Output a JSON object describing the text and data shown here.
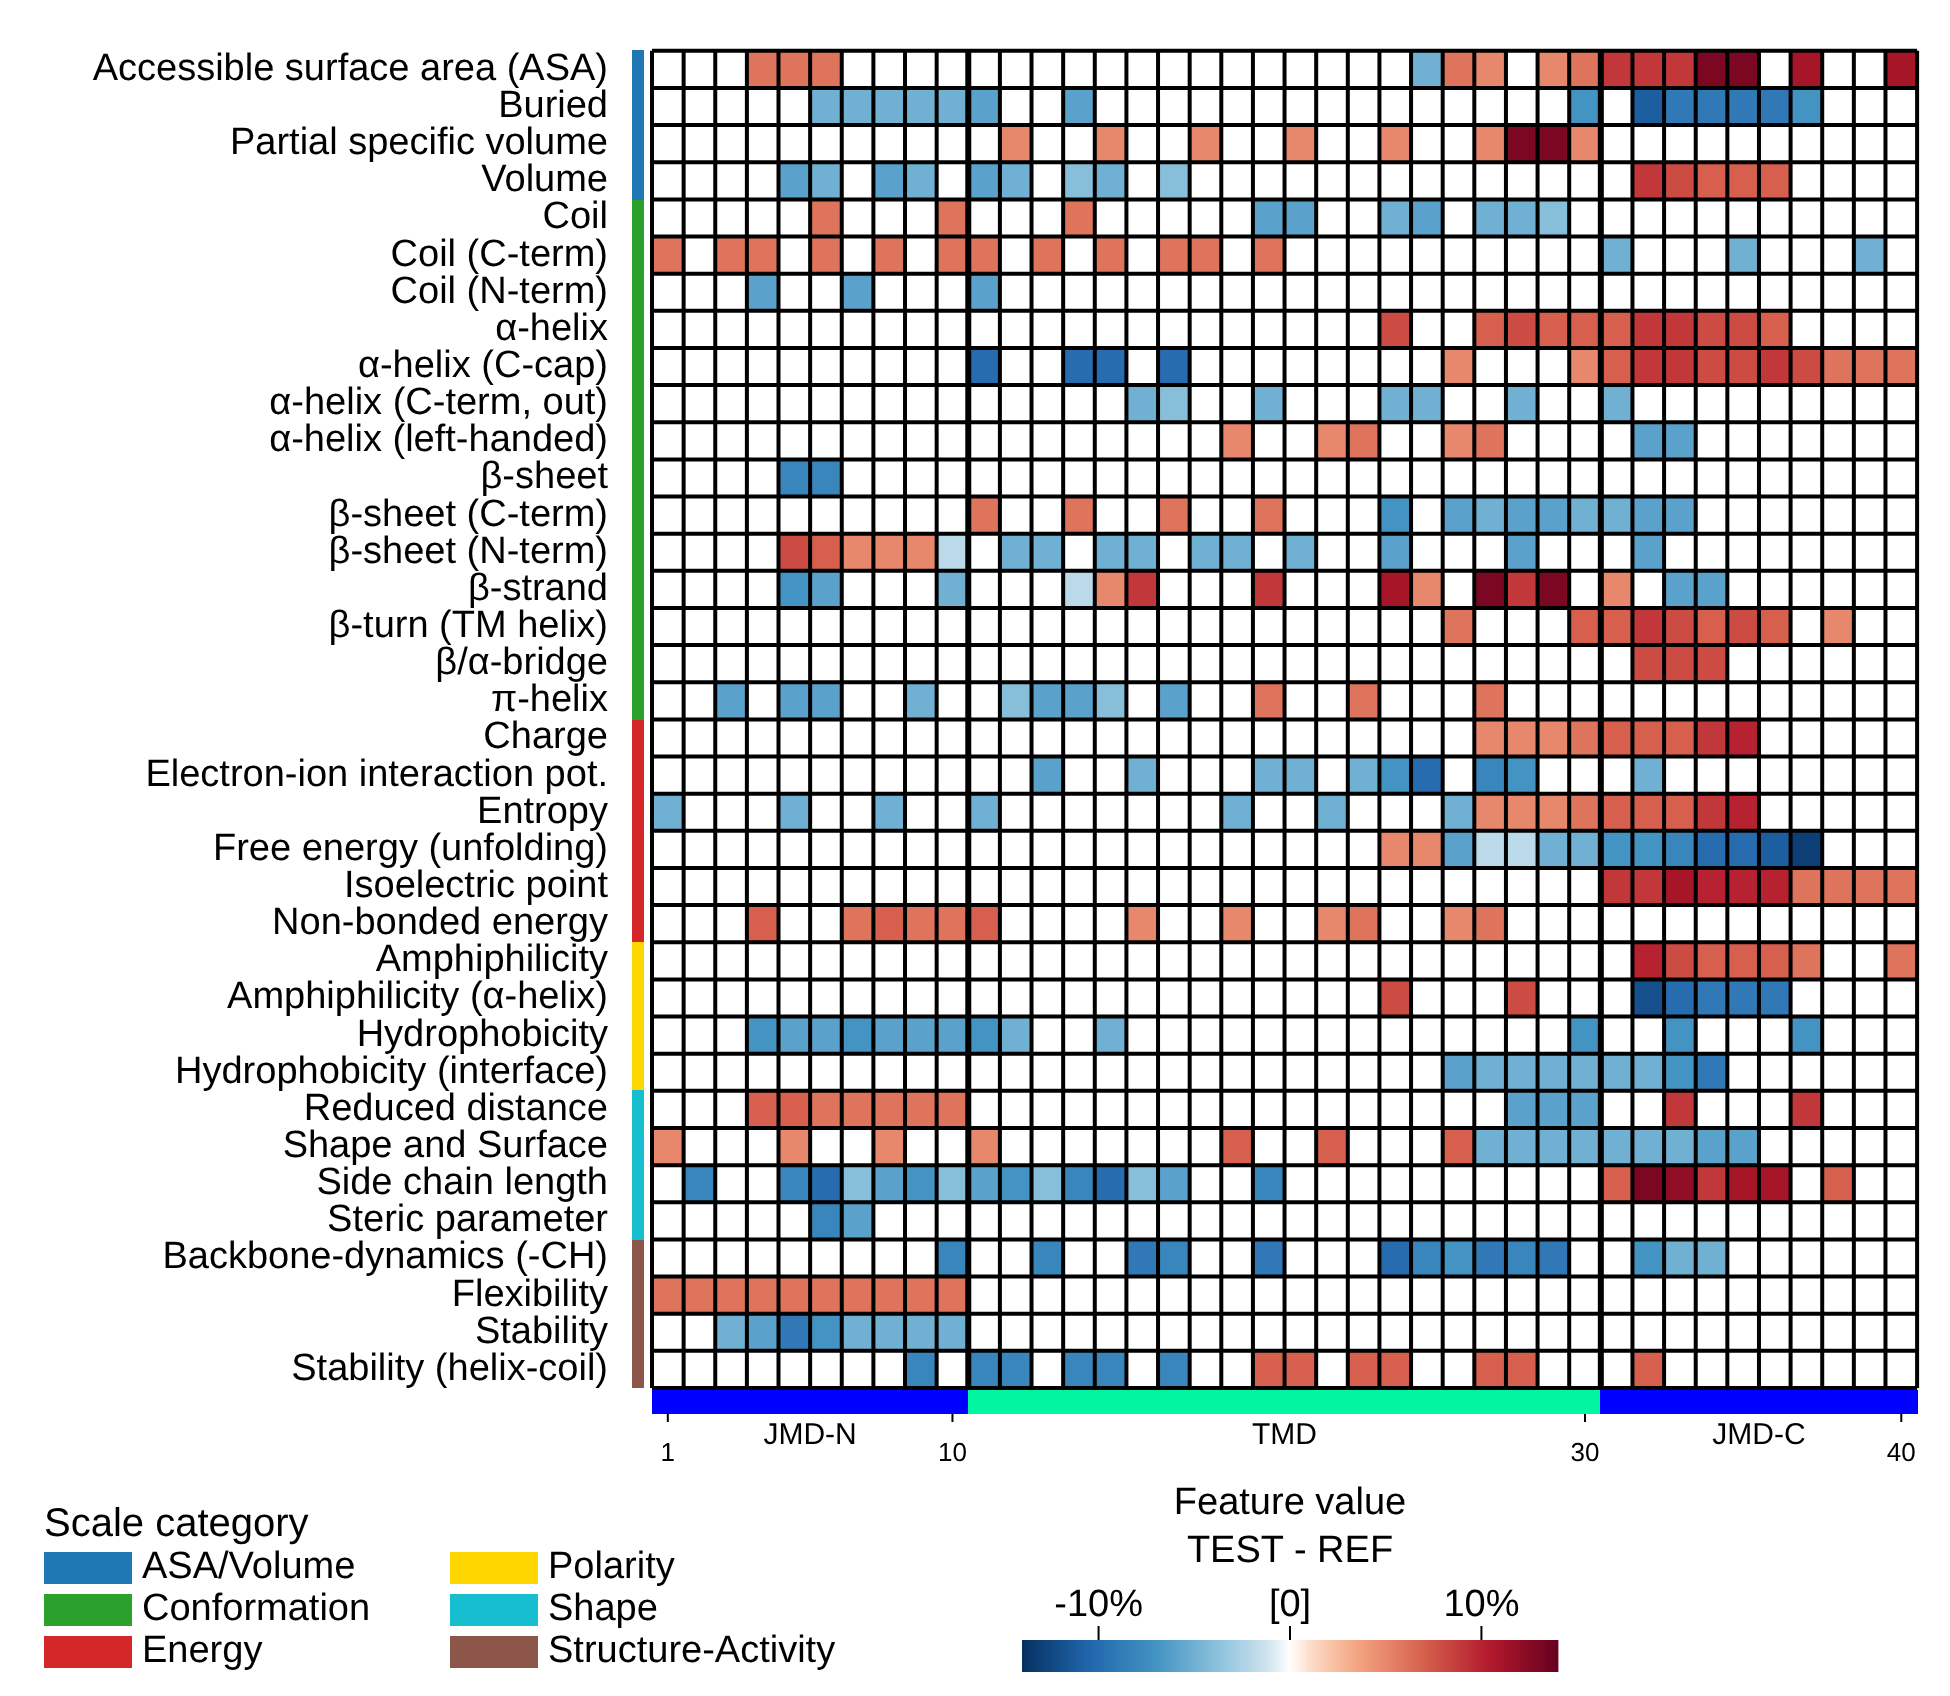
{
  "chart_data": {
    "type": "heatmap",
    "categories": [
      "1",
      null,
      null,
      null,
      null,
      null,
      null,
      null,
      null,
      "10",
      null,
      null,
      null,
      null,
      null,
      null,
      null,
      null,
      null,
      null,
      null,
      null,
      null,
      null,
      null,
      null,
      null,
      null,
      null,
      "30",
      null,
      null,
      null,
      null,
      null,
      null,
      null,
      null,
      null,
      "40"
    ],
    "y_categories": [
      "Accessible surface area (ASA)",
      "Buried",
      "Partial specific volume",
      "Volume",
      "Coil",
      "Coil (C-term)",
      "Coil (N-term)",
      "α-helix",
      "α-helix (C-cap)",
      "α-helix (C-term, out)",
      "α-helix (left-handed)",
      "β-sheet",
      "β-sheet (C-term)",
      "β-sheet (N-term)",
      "β-strand",
      "β-turn (TM helix)",
      "β/α-bridge",
      "π-helix",
      "Charge",
      "Electron-ion interaction pot.",
      "Entropy",
      "Free energy (unfolding)",
      "Isoelectric point",
      "Non-bonded energy",
      "Amphiphilicity",
      "Amphiphilicity (α-helix)",
      "Hydrophobicity",
      "Hydrophobicity (interface)",
      "Reduced distance",
      "Shape and Surface",
      "Side chain length",
      "Steric parameter",
      "Backbone-dynamics (-CH)",
      "Flexibility",
      "Stability",
      "Stability (helix-coil)"
    ],
    "cells": [
      [
        0,
        0,
        0,
        6,
        6,
        6,
        0,
        0,
        0,
        0,
        0,
        0,
        0,
        0,
        0,
        0,
        0,
        0,
        0,
        0,
        0,
        0,
        0,
        0,
        -5,
        6,
        5,
        0,
        5,
        6,
        9,
        9,
        9,
        13,
        13,
        0,
        11,
        0,
        0,
        11
      ],
      [
        0,
        0,
        0,
        0,
        0,
        -5,
        -5,
        -5,
        -5,
        -5,
        -6,
        0,
        0,
        -6,
        0,
        0,
        0,
        0,
        0,
        0,
        0,
        0,
        0,
        0,
        0,
        0,
        0,
        0,
        0,
        -7,
        0,
        -11,
        -9,
        -9,
        -9,
        -9,
        -7,
        0,
        0,
        0
      ],
      [
        0,
        0,
        0,
        0,
        0,
        0,
        0,
        0,
        0,
        0,
        0,
        5,
        0,
        0,
        5,
        0,
        0,
        5,
        0,
        0,
        5,
        0,
        0,
        5,
        0,
        0,
        5,
        13,
        13,
        5,
        0,
        0,
        0,
        0,
        0,
        0,
        0,
        0,
        0,
        0
      ],
      [
        0,
        0,
        0,
        0,
        -6,
        -5,
        0,
        -6,
        -5,
        0,
        -6,
        -5,
        0,
        -4,
        -5,
        0,
        -4,
        0,
        0,
        0,
        0,
        0,
        0,
        0,
        0,
        0,
        0,
        0,
        0,
        0,
        0,
        9,
        8,
        7,
        7,
        7,
        0,
        0,
        0,
        0
      ],
      [
        0,
        0,
        0,
        0,
        0,
        6,
        0,
        0,
        0,
        6,
        0,
        0,
        0,
        6,
        0,
        0,
        0,
        0,
        0,
        -6,
        -6,
        0,
        0,
        -5,
        -6,
        0,
        -5,
        -5,
        -4,
        0,
        0,
        0,
        0,
        0,
        0,
        0,
        0,
        0,
        0,
        0
      ],
      [
        6,
        0,
        6,
        6,
        0,
        6,
        0,
        6,
        0,
        6,
        6,
        0,
        6,
        0,
        6,
        0,
        6,
        6,
        0,
        6,
        0,
        0,
        0,
        0,
        0,
        0,
        0,
        0,
        0,
        0,
        -5,
        0,
        0,
        0,
        -5,
        0,
        0,
        0,
        -5,
        0
      ],
      [
        0,
        0,
        0,
        -6,
        0,
        0,
        -6,
        0,
        0,
        0,
        -6,
        0,
        0,
        0,
        0,
        0,
        0,
        0,
        0,
        0,
        0,
        0,
        0,
        0,
        0,
        0,
        0,
        0,
        0,
        0,
        0,
        0,
        0,
        0,
        0,
        0,
        0,
        0,
        0,
        0
      ],
      [
        0,
        0,
        0,
        0,
        0,
        0,
        0,
        0,
        0,
        0,
        0,
        0,
        0,
        0,
        0,
        0,
        0,
        0,
        0,
        0,
        0,
        0,
        0,
        8,
        0,
        0,
        7,
        8,
        7,
        7,
        7,
        9,
        9,
        8,
        8,
        7,
        0,
        0,
        0,
        0
      ],
      [
        0,
        0,
        0,
        0,
        0,
        0,
        0,
        0,
        0,
        0,
        -10,
        0,
        0,
        -10,
        -10,
        0,
        -10,
        0,
        0,
        0,
        0,
        0,
        0,
        0,
        0,
        5,
        0,
        0,
        0,
        5,
        7,
        9,
        9,
        8,
        8,
        9,
        8,
        6,
        6,
        6
      ],
      [
        0,
        0,
        0,
        0,
        0,
        0,
        0,
        0,
        0,
        0,
        0,
        0,
        0,
        0,
        0,
        -5,
        -4,
        0,
        0,
        -5,
        0,
        0,
        0,
        -5,
        -5,
        0,
        0,
        -5,
        0,
        0,
        -5,
        0,
        0,
        0,
        0,
        0,
        0,
        0,
        0,
        0
      ],
      [
        0,
        0,
        0,
        0,
        0,
        0,
        0,
        0,
        0,
        0,
        0,
        0,
        0,
        0,
        0,
        0,
        0,
        0,
        5,
        0,
        0,
        5,
        6,
        0,
        0,
        5,
        6,
        0,
        0,
        0,
        0,
        -6,
        -6,
        0,
        0,
        0,
        0,
        0,
        0,
        0
      ],
      [
        0,
        0,
        0,
        0,
        -8,
        -8,
        0,
        0,
        0,
        0,
        0,
        0,
        0,
        0,
        0,
        0,
        0,
        0,
        0,
        0,
        0,
        0,
        0,
        0,
        0,
        0,
        0,
        0,
        0,
        0,
        0,
        0,
        0,
        0,
        0,
        0,
        0,
        0,
        0,
        0
      ],
      [
        0,
        0,
        0,
        0,
        0,
        0,
        0,
        0,
        0,
        0,
        6,
        0,
        0,
        6,
        0,
        0,
        6,
        0,
        0,
        6,
        0,
        0,
        0,
        -7,
        0,
        -6,
        -5,
        -6,
        -6,
        -5,
        -5,
        -6,
        -6,
        0,
        0,
        0,
        0,
        0,
        0,
        0
      ],
      [
        0,
        0,
        0,
        0,
        8,
        7,
        5,
        5,
        5,
        -2,
        0,
        -5,
        -5,
        0,
        -5,
        -5,
        0,
        -5,
        -5,
        0,
        -5,
        0,
        0,
        -6,
        0,
        0,
        0,
        -6,
        0,
        0,
        0,
        -6,
        0,
        0,
        0,
        0,
        0,
        0,
        0,
        0
      ],
      [
        0,
        0,
        0,
        0,
        -7,
        -6,
        0,
        0,
        0,
        -5,
        0,
        0,
        0,
        -2,
        5,
        9,
        0,
        0,
        0,
        9,
        0,
        0,
        0,
        11,
        5,
        0,
        13,
        9,
        13,
        0,
        5,
        0,
        -6,
        -6,
        0,
        0,
        0,
        0,
        0,
        0
      ],
      [
        0,
        0,
        0,
        0,
        0,
        0,
        0,
        0,
        0,
        0,
        0,
        0,
        0,
        0,
        0,
        0,
        0,
        0,
        0,
        0,
        0,
        0,
        0,
        0,
        0,
        6,
        0,
        0,
        0,
        7,
        7,
        9,
        8,
        7,
        8,
        7,
        0,
        5,
        0,
        0
      ],
      [
        0,
        0,
        0,
        0,
        0,
        0,
        0,
        0,
        0,
        0,
        0,
        0,
        0,
        0,
        0,
        0,
        0,
        0,
        0,
        0,
        0,
        0,
        0,
        0,
        0,
        0,
        0,
        0,
        0,
        0,
        0,
        8,
        8,
        8,
        0,
        0,
        0,
        0,
        0,
        0
      ],
      [
        0,
        0,
        -6,
        0,
        -6,
        -6,
        0,
        0,
        -5,
        0,
        0,
        -4,
        -6,
        -6,
        -4,
        0,
        -6,
        0,
        0,
        6,
        0,
        0,
        6,
        0,
        0,
        0,
        6,
        0,
        0,
        0,
        0,
        0,
        0,
        0,
        0,
        0,
        0,
        0,
        0,
        0
      ],
      [
        0,
        0,
        0,
        0,
        0,
        0,
        0,
        0,
        0,
        0,
        0,
        0,
        0,
        0,
        0,
        0,
        0,
        0,
        0,
        0,
        0,
        0,
        0,
        0,
        0,
        0,
        5,
        5,
        5,
        6,
        7,
        7,
        7,
        9,
        10,
        0,
        0,
        0,
        0,
        0
      ],
      [
        0,
        0,
        0,
        0,
        0,
        0,
        0,
        0,
        0,
        0,
        0,
        0,
        -6,
        0,
        0,
        -5,
        0,
        0,
        0,
        -5,
        -5,
        0,
        -5,
        -7,
        -10,
        0,
        -8,
        -7,
        0,
        0,
        0,
        -5,
        0,
        0,
        0,
        0,
        0,
        0,
        0,
        0
      ],
      [
        -5,
        0,
        0,
        0,
        -5,
        0,
        0,
        -5,
        0,
        0,
        -5,
        0,
        0,
        0,
        0,
        0,
        0,
        0,
        -5,
        0,
        0,
        -5,
        0,
        0,
        0,
        -5,
        5,
        5,
        5,
        6,
        7,
        7,
        7,
        9,
        10,
        0,
        0,
        0,
        0,
        0
      ],
      [
        0,
        0,
        0,
        0,
        0,
        0,
        0,
        0,
        0,
        0,
        0,
        0,
        0,
        0,
        0,
        0,
        0,
        0,
        0,
        0,
        0,
        0,
        0,
        5,
        5,
        -6,
        -2,
        -2,
        -5,
        -5,
        -7,
        -7,
        -8,
        -10,
        -10,
        -11,
        -13,
        0,
        0,
        0
      ],
      [
        0,
        0,
        0,
        0,
        0,
        0,
        0,
        0,
        0,
        0,
        0,
        0,
        0,
        0,
        0,
        0,
        0,
        0,
        0,
        0,
        0,
        0,
        0,
        0,
        0,
        0,
        0,
        0,
        0,
        0,
        9,
        9,
        11,
        10,
        10,
        10,
        6,
        6,
        6,
        6
      ],
      [
        0,
        0,
        0,
        7,
        0,
        0,
        6,
        7,
        6,
        6,
        7,
        0,
        0,
        0,
        0,
        5,
        0,
        0,
        5,
        0,
        0,
        5,
        6,
        0,
        0,
        5,
        6,
        0,
        0,
        0,
        0,
        0,
        0,
        0,
        0,
        0,
        0,
        0,
        0,
        0
      ],
      [
        0,
        0,
        0,
        0,
        0,
        0,
        0,
        0,
        0,
        0,
        0,
        0,
        0,
        0,
        0,
        0,
        0,
        0,
        0,
        0,
        0,
        0,
        0,
        0,
        0,
        0,
        0,
        0,
        0,
        0,
        0,
        10,
        8,
        7,
        7,
        7,
        6,
        0,
        0,
        6
      ],
      [
        0,
        0,
        0,
        0,
        0,
        0,
        0,
        0,
        0,
        0,
        0,
        0,
        0,
        0,
        0,
        0,
        0,
        0,
        0,
        0,
        0,
        0,
        0,
        8,
        0,
        0,
        0,
        8,
        0,
        0,
        0,
        -12,
        -10,
        -9,
        -9,
        -9,
        0,
        0,
        0,
        0
      ],
      [
        0,
        0,
        0,
        -7,
        -6,
        -6,
        -7,
        -6,
        -6,
        -6,
        -7,
        -5,
        0,
        0,
        -5,
        0,
        0,
        0,
        0,
        0,
        0,
        0,
        0,
        0,
        0,
        0,
        0,
        0,
        0,
        -7,
        0,
        0,
        -7,
        0,
        0,
        0,
        -7,
        0,
        0,
        0
      ],
      [
        0,
        0,
        0,
        0,
        0,
        0,
        0,
        0,
        0,
        0,
        0,
        0,
        0,
        0,
        0,
        0,
        0,
        0,
        0,
        0,
        0,
        0,
        0,
        0,
        0,
        -6,
        -5,
        -5,
        -5,
        -5,
        -5,
        -5,
        -7,
        -9,
        0,
        0,
        0,
        0,
        0,
        0
      ],
      [
        0,
        0,
        0,
        7,
        7,
        6,
        6,
        6,
        6,
        6,
        0,
        0,
        0,
        0,
        0,
        0,
        0,
        0,
        0,
        0,
        0,
        0,
        0,
        0,
        0,
        0,
        0,
        -6,
        -6,
        -6,
        0,
        0,
        9,
        0,
        0,
        0,
        9,
        0,
        0,
        0
      ],
      [
        5,
        0,
        0,
        0,
        5,
        0,
        0,
        5,
        0,
        0,
        5,
        0,
        0,
        0,
        0,
        0,
        0,
        0,
        7,
        0,
        0,
        7,
        0,
        0,
        0,
        7,
        -5,
        -5,
        -5,
        -5,
        -5,
        -5,
        -5,
        -6,
        -6,
        0,
        0,
        0,
        0,
        0
      ],
      [
        0,
        -8,
        0,
        0,
        -8,
        -10,
        -4,
        -6,
        -7,
        -4,
        -6,
        -7,
        -4,
        -8,
        -10,
        -4,
        -6,
        0,
        0,
        -8,
        0,
        0,
        0,
        0,
        0,
        0,
        0,
        0,
        0,
        0,
        7,
        13,
        12,
        9,
        11,
        11,
        0,
        7,
        0,
        0
      ],
      [
        0,
        0,
        0,
        0,
        0,
        -8,
        -6,
        0,
        0,
        0,
        0,
        0,
        0,
        0,
        0,
        0,
        0,
        0,
        0,
        0,
        0,
        0,
        0,
        0,
        0,
        0,
        0,
        0,
        0,
        0,
        0,
        0,
        0,
        0,
        0,
        0,
        0,
        0,
        0,
        0
      ],
      [
        0,
        0,
        0,
        0,
        0,
        0,
        0,
        0,
        0,
        -8,
        0,
        0,
        -8,
        0,
        0,
        -9,
        -8,
        0,
        0,
        -9,
        0,
        0,
        0,
        -10,
        -8,
        -7,
        -9,
        -8,
        -9,
        0,
        0,
        -7,
        -5,
        -5,
        0,
        0,
        0,
        0,
        0,
        0
      ],
      [
        6,
        6,
        6,
        6,
        6,
        6,
        6,
        6,
        6,
        6,
        0,
        0,
        0,
        0,
        0,
        0,
        0,
        0,
        0,
        0,
        0,
        0,
        0,
        0,
        0,
        0,
        0,
        0,
        0,
        0,
        0,
        0,
        0,
        0,
        0,
        0,
        0,
        0,
        0,
        0
      ],
      [
        0,
        0,
        -5,
        -6,
        -9,
        -7,
        -5,
        -5,
        -5,
        -5,
        0,
        0,
        0,
        0,
        0,
        0,
        0,
        0,
        0,
        0,
        0,
        0,
        0,
        0,
        0,
        0,
        0,
        0,
        0,
        0,
        0,
        0,
        0,
        0,
        0,
        0,
        0,
        0,
        0,
        0
      ],
      [
        0,
        0,
        0,
        0,
        0,
        0,
        0,
        0,
        -8,
        0,
        -8,
        -8,
        0,
        -8,
        -8,
        0,
        -8,
        0,
        0,
        7,
        7,
        0,
        7,
        7,
        0,
        0,
        7,
        7,
        0,
        0,
        0,
        7,
        0,
        0,
        0,
        0,
        0,
        0,
        0,
        0
      ]
    ],
    "clabel": "Feature value\nTEST - REF",
    "clim": [
      -14,
      14
    ],
    "cticks": [
      {
        "value": -10,
        "label": "-10%"
      },
      {
        "value": 0,
        "label": "[0]"
      },
      {
        "value": 10,
        "label": "10%"
      }
    ],
    "annotations": [
      "JMD-N",
      "TMD",
      "JMD-C",
      "Scale category",
      "ASA/Volume",
      "Conformation",
      "Energy",
      "Polarity",
      "Shape",
      "Structure-Activity"
    ]
  }
}
